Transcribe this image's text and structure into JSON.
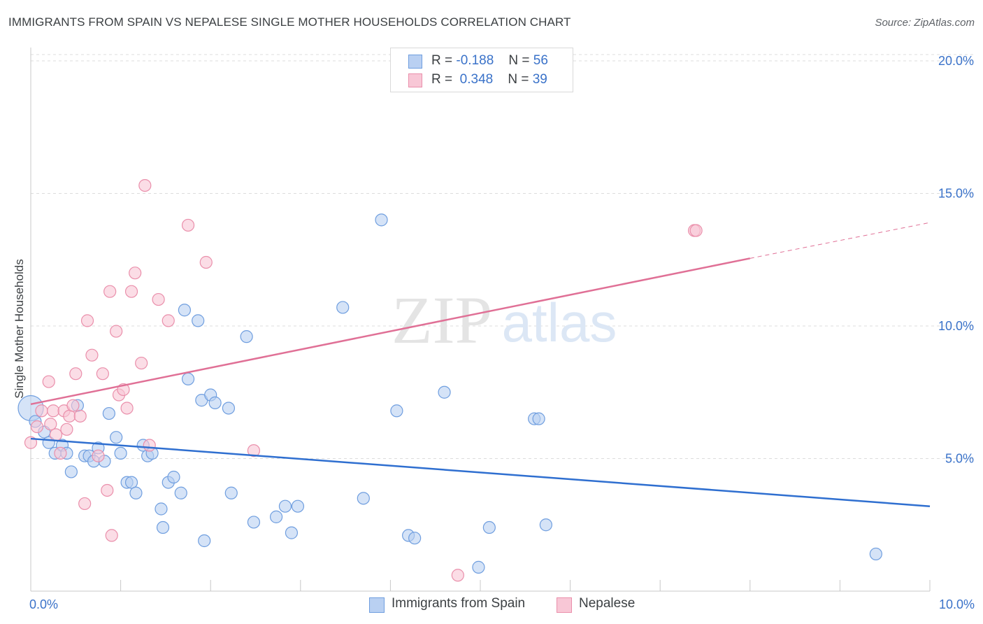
{
  "header": {
    "title": "IMMIGRANTS FROM SPAIN VS NEPALESE SINGLE MOTHER HOUSEHOLDS CORRELATION CHART",
    "source": "Source: ZipAtlas.com"
  },
  "watermark": {
    "zip": "ZIP",
    "atlas": "atlas"
  },
  "legend": {
    "rows": [
      {
        "r_label": "R =",
        "r_value": "-0.188",
        "n_label": "N =",
        "n_value": "56"
      },
      {
        "r_label": "R =",
        "r_value": "0.348",
        "n_label": "N =",
        "n_value": "39"
      }
    ]
  },
  "bottom_legend": {
    "series_a": "Immigrants from Spain",
    "series_b": "Nepalese"
  },
  "colors": {
    "blue_fill": "#b9d0f2",
    "blue_stroke": "#6f9edf",
    "blue_line": "#2f6fd0",
    "pink_fill": "#f8c7d6",
    "pink_stroke": "#ea8fab",
    "pink_line": "#e07096",
    "tick_text": "#3a72c9",
    "grid": "#dcdcdc"
  },
  "chart_data": {
    "type": "scatter",
    "title": "IMMIGRANTS FROM SPAIN VS NEPALESE SINGLE MOTHER HOUSEHOLDS CORRELATION CHART",
    "xlabel": "",
    "ylabel": "Single Mother Households",
    "xlim": [
      0,
      10
    ],
    "ylim": [
      0,
      20.5
    ],
    "x_tick_labels": [
      {
        "value": 0,
        "label": "0.0%"
      },
      {
        "value": 10,
        "label": "10.0%"
      }
    ],
    "y_tick_labels": [
      {
        "value": 5,
        "label": "5.0%"
      },
      {
        "value": 10,
        "label": "10.0%"
      },
      {
        "value": 15,
        "label": "15.0%"
      },
      {
        "value": 20,
        "label": "20.0%"
      }
    ],
    "grid": true,
    "legend_position": "top-center",
    "series": [
      {
        "name": "Immigrants from Spain",
        "color": "blue",
        "points": [
          [
            0.0,
            6.9
          ],
          [
            0.05,
            6.4
          ],
          [
            0.15,
            6.0
          ],
          [
            0.2,
            5.6
          ],
          [
            0.27,
            5.2
          ],
          [
            0.35,
            5.5
          ],
          [
            0.4,
            5.2
          ],
          [
            0.45,
            4.5
          ],
          [
            0.52,
            7.0
          ],
          [
            0.6,
            5.1
          ],
          [
            0.65,
            5.1
          ],
          [
            0.7,
            4.9
          ],
          [
            0.75,
            5.4
          ],
          [
            0.82,
            4.9
          ],
          [
            0.87,
            6.7
          ],
          [
            0.95,
            5.8
          ],
          [
            1.0,
            5.2
          ],
          [
            1.07,
            4.1
          ],
          [
            1.12,
            4.1
          ],
          [
            1.17,
            3.7
          ],
          [
            1.25,
            5.5
          ],
          [
            1.3,
            5.1
          ],
          [
            1.35,
            5.2
          ],
          [
            1.45,
            3.1
          ],
          [
            1.47,
            2.4
          ],
          [
            1.53,
            4.1
          ],
          [
            1.59,
            4.3
          ],
          [
            1.67,
            3.7
          ],
          [
            1.71,
            10.6
          ],
          [
            1.75,
            8.0
          ],
          [
            1.86,
            10.2
          ],
          [
            1.9,
            7.2
          ],
          [
            1.93,
            1.9
          ],
          [
            2.0,
            7.4
          ],
          [
            2.05,
            7.1
          ],
          [
            2.2,
            6.9
          ],
          [
            2.23,
            3.7
          ],
          [
            2.4,
            9.6
          ],
          [
            2.48,
            2.6
          ],
          [
            2.73,
            2.8
          ],
          [
            2.83,
            3.2
          ],
          [
            2.9,
            2.2
          ],
          [
            2.97,
            3.2
          ],
          [
            3.47,
            10.7
          ],
          [
            3.7,
            3.5
          ],
          [
            3.9,
            14.0
          ],
          [
            4.07,
            6.8
          ],
          [
            4.2,
            2.1
          ],
          [
            4.27,
            2.0
          ],
          [
            4.6,
            7.5
          ],
          [
            4.98,
            0.9
          ],
          [
            5.1,
            2.4
          ],
          [
            5.6,
            6.5
          ],
          [
            5.65,
            6.5
          ],
          [
            5.73,
            2.5
          ],
          [
            9.4,
            1.4
          ]
        ]
      },
      {
        "name": "Nepalese",
        "color": "pink",
        "points": [
          [
            0.0,
            5.6
          ],
          [
            0.07,
            6.2
          ],
          [
            0.12,
            6.8
          ],
          [
            0.2,
            7.9
          ],
          [
            0.22,
            6.3
          ],
          [
            0.25,
            6.8
          ],
          [
            0.28,
            5.9
          ],
          [
            0.33,
            5.2
          ],
          [
            0.37,
            6.8
          ],
          [
            0.4,
            6.1
          ],
          [
            0.43,
            6.6
          ],
          [
            0.47,
            7.0
          ],
          [
            0.5,
            8.2
          ],
          [
            0.55,
            6.6
          ],
          [
            0.6,
            3.3
          ],
          [
            0.63,
            10.2
          ],
          [
            0.68,
            8.9
          ],
          [
            0.75,
            5.1
          ],
          [
            0.8,
            8.2
          ],
          [
            0.85,
            3.8
          ],
          [
            0.88,
            11.3
          ],
          [
            0.9,
            2.1
          ],
          [
            0.95,
            9.8
          ],
          [
            0.98,
            7.4
          ],
          [
            1.03,
            7.6
          ],
          [
            1.07,
            6.9
          ],
          [
            1.12,
            11.3
          ],
          [
            1.16,
            12.0
          ],
          [
            1.23,
            8.6
          ],
          [
            1.27,
            15.3
          ],
          [
            1.32,
            5.5
          ],
          [
            1.42,
            11.0
          ],
          [
            1.53,
            10.2
          ],
          [
            1.75,
            13.8
          ],
          [
            1.95,
            12.4
          ],
          [
            2.48,
            5.3
          ],
          [
            4.75,
            0.6
          ],
          [
            7.38,
            13.6
          ],
          [
            7.4,
            13.6
          ]
        ]
      }
    ],
    "trend_lines": [
      {
        "series": "Immigrants from Spain",
        "from": [
          0,
          5.75
        ],
        "to": [
          10,
          3.2
        ],
        "style": "solid"
      },
      {
        "series": "Nepalese",
        "from": [
          0,
          7.05
        ],
        "to": [
          8.0,
          12.55
        ],
        "style": "solid"
      },
      {
        "series": "Nepalese",
        "from": [
          8.0,
          12.55
        ],
        "to": [
          10,
          13.9
        ],
        "style": "dashed"
      }
    ]
  }
}
